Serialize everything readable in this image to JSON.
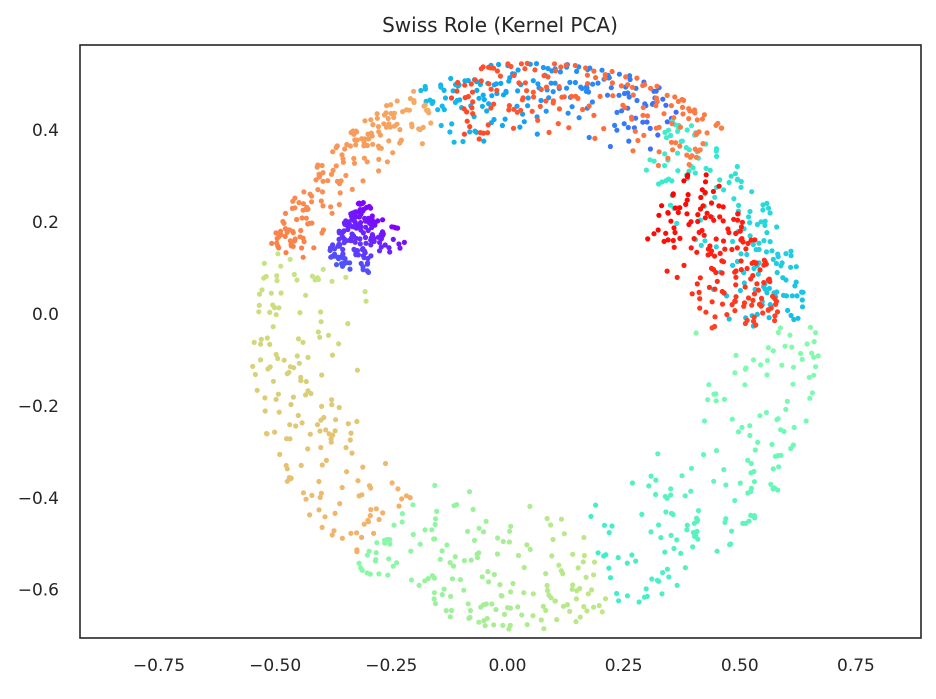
{
  "chart_data": {
    "type": "scatter",
    "title": "Swiss Role (Kernel PCA)",
    "xlabel": "",
    "ylabel": "",
    "xlim": [
      -0.92,
      0.89
    ],
    "ylim": [
      -0.705,
      0.585
    ],
    "x_ticks": [
      -0.75,
      -0.5,
      -0.25,
      0.0,
      0.25,
      0.5,
      0.75
    ],
    "x_tick_labels": [
      "−0.75",
      "−0.50",
      "−0.25",
      "0.00",
      "0.25",
      "0.50",
      "0.75"
    ],
    "y_ticks": [
      0.4,
      0.2,
      0.0,
      -0.2,
      -0.4,
      -0.6
    ],
    "y_tick_labels": [
      "0.4",
      "0.2",
      "0.0",
      "−0.2",
      "−0.4",
      "−0.6"
    ],
    "grid": false,
    "legend": "none",
    "colormap": "rainbow",
    "color_stops": [
      "#8000ff",
      "#3f6dfb",
      "#0cb0ef",
      "#34e8d2",
      "#7bfcb0",
      "#c6e482",
      "#f3b26a",
      "#ff6b3b",
      "#ff0000"
    ],
    "axes_color": "#262626",
    "series": [
      {
        "description": "ring of ~1500 points, colour varies along the unrolled swiss-roll parameter",
        "ring_center": [
          0.07,
          -0.07
        ],
        "inner_radius": 0.33,
        "outer_radius": 0.62,
        "arcs": [
          {
            "angle_start_deg": 140,
            "angle_end_deg": 158,
            "t_start": 0.0,
            "t_end": 0.1,
            "radial_band": [
              0.36,
              0.5
            ]
          },
          {
            "angle_start_deg": 60,
            "angle_end_deg": 115,
            "t_start": 0.12,
            "t_end": 0.28,
            "radial_band": [
              0.45,
              0.62
            ]
          },
          {
            "angle_start_deg": 5,
            "angle_end_deg": 60,
            "t_start": 0.28,
            "t_end": 0.4,
            "radial_band": [
              0.38,
              0.58
            ]
          },
          {
            "angle_start_deg": -75,
            "angle_end_deg": 5,
            "t_start": 0.4,
            "t_end": 0.52,
            "radial_band": [
              0.33,
              0.6
            ]
          },
          {
            "angle_start_deg": -130,
            "angle_end_deg": -75,
            "t_start": 0.52,
            "t_end": 0.62,
            "radial_band": [
              0.33,
              0.62
            ]
          },
          {
            "angle_start_deg": -200,
            "angle_end_deg": -130,
            "t_start": 0.62,
            "t_end": 0.76,
            "radial_band": [
              0.38,
              0.62
            ]
          },
          {
            "angle_start_deg": -245,
            "angle_end_deg": -200,
            "t_start": 0.76,
            "t_end": 0.84,
            "radial_band": [
              0.5,
              0.62
            ]
          },
          {
            "angle_start_deg": -310,
            "angle_end_deg": -250,
            "t_start": 0.84,
            "t_end": 0.92,
            "radial_band": [
              0.45,
              0.62
            ]
          },
          {
            "angle_start_deg": -355,
            "angle_end_deg": -310,
            "t_start": 0.92,
            "t_end": 1.0,
            "radial_band": [
              0.3,
              0.52
            ]
          }
        ],
        "point_count": 1500
      }
    ]
  }
}
